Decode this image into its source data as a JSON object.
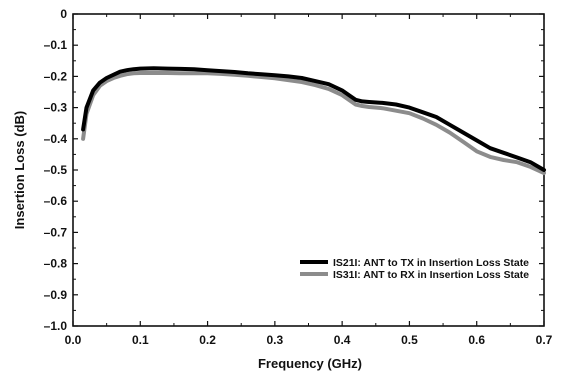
{
  "chart_data": {
    "type": "line",
    "title": "",
    "xlabel": "Frequency (GHz)",
    "ylabel": "Insertion Loss (dB)",
    "xlim": [
      0.0,
      0.7
    ],
    "ylim": [
      -1.0,
      0
    ],
    "x_ticks": [
      0.0,
      0.1,
      0.2,
      0.3,
      0.4,
      0.5,
      0.6,
      0.7
    ],
    "x_tick_labels": [
      "0.0",
      "0.1",
      "0.2",
      "0.3",
      "0.4",
      "0.5",
      "0.6",
      "0.7"
    ],
    "y_ticks": [
      0,
      -0.1,
      -0.2,
      -0.3,
      -0.4,
      -0.5,
      -0.6,
      -0.7,
      -0.8,
      -0.9,
      -1.0
    ],
    "y_tick_labels": [
      "0",
      "–0.1",
      "–0.2",
      "–0.3",
      "–0.4",
      "–0.5",
      "–0.6",
      "–0.7",
      "–0.8",
      "–0.9",
      "–1.0"
    ],
    "grid": false,
    "legend_position": "lower-right",
    "series": [
      {
        "name": "IS21I: ANT to TX in Insertion Loss State",
        "color": "#000000",
        "x": [
          0.015,
          0.02,
          0.03,
          0.04,
          0.05,
          0.06,
          0.07,
          0.08,
          0.09,
          0.1,
          0.12,
          0.14,
          0.16,
          0.18,
          0.2,
          0.22,
          0.24,
          0.26,
          0.28,
          0.3,
          0.32,
          0.34,
          0.36,
          0.38,
          0.4,
          0.41,
          0.42,
          0.43,
          0.44,
          0.46,
          0.48,
          0.5,
          0.52,
          0.54,
          0.56,
          0.58,
          0.6,
          0.62,
          0.64,
          0.66,
          0.68,
          0.7
        ],
        "y": [
          -0.37,
          -0.3,
          -0.245,
          -0.22,
          -0.205,
          -0.195,
          -0.185,
          -0.18,
          -0.177,
          -0.175,
          -0.174,
          -0.175,
          -0.176,
          -0.177,
          -0.18,
          -0.183,
          -0.186,
          -0.19,
          -0.193,
          -0.196,
          -0.2,
          -0.205,
          -0.215,
          -0.225,
          -0.245,
          -0.26,
          -0.275,
          -0.28,
          -0.282,
          -0.285,
          -0.29,
          -0.3,
          -0.315,
          -0.33,
          -0.355,
          -0.38,
          -0.405,
          -0.43,
          -0.445,
          -0.46,
          -0.475,
          -0.5
        ]
      },
      {
        "name": "IS31I: ANT to RX in Insertion Loss State",
        "color": "#8c8c8c",
        "x": [
          0.015,
          0.02,
          0.03,
          0.04,
          0.05,
          0.06,
          0.07,
          0.08,
          0.09,
          0.1,
          0.12,
          0.14,
          0.16,
          0.18,
          0.2,
          0.22,
          0.24,
          0.26,
          0.28,
          0.3,
          0.32,
          0.34,
          0.36,
          0.38,
          0.4,
          0.41,
          0.42,
          0.43,
          0.44,
          0.46,
          0.48,
          0.5,
          0.52,
          0.54,
          0.56,
          0.58,
          0.6,
          0.62,
          0.64,
          0.66,
          0.68,
          0.7
        ],
        "y": [
          -0.4,
          -0.32,
          -0.26,
          -0.23,
          -0.215,
          -0.205,
          -0.198,
          -0.193,
          -0.19,
          -0.189,
          -0.189,
          -0.189,
          -0.19,
          -0.19,
          -0.19,
          -0.192,
          -0.195,
          -0.198,
          -0.202,
          -0.206,
          -0.212,
          -0.218,
          -0.228,
          -0.24,
          -0.26,
          -0.275,
          -0.29,
          -0.295,
          -0.298,
          -0.302,
          -0.31,
          -0.318,
          -0.335,
          -0.355,
          -0.38,
          -0.41,
          -0.44,
          -0.458,
          -0.468,
          -0.475,
          -0.49,
          -0.51
        ]
      }
    ]
  }
}
